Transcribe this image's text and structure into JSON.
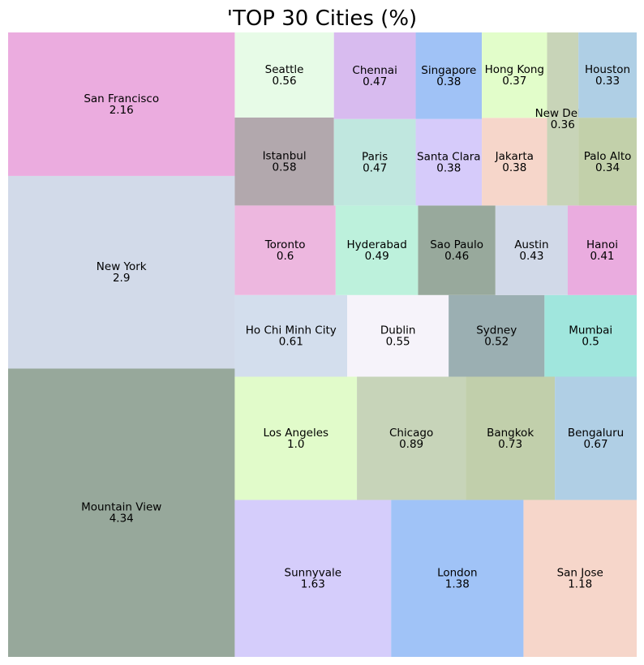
{
  "chart_data": {
    "type": "treemap",
    "title": "'TOP 30 Cities (%)",
    "items": [
      {
        "name": "Mountain View",
        "value": 4.34,
        "label": "4.34",
        "color": "#97a89b"
      },
      {
        "name": "New York",
        "value": 2.9,
        "label": "2.9",
        "color": "#d2dae9"
      },
      {
        "name": "San Francisco",
        "value": 2.16,
        "label": "2.16",
        "color": "#ebacdf"
      },
      {
        "name": "Sunnyvale",
        "value": 1.63,
        "label": "1.63",
        "color": "#d5cdfb"
      },
      {
        "name": "London",
        "value": 1.38,
        "label": "1.38",
        "color": "#a0c3f7"
      },
      {
        "name": "San Jose",
        "value": 1.18,
        "label": "1.18",
        "color": "#f6d6ca"
      },
      {
        "name": "Los Angeles",
        "value": 1.0,
        "label": "1.0",
        "color": "#e1fbca"
      },
      {
        "name": "Chicago",
        "value": 0.89,
        "label": "0.89",
        "color": "#c7d4b9"
      },
      {
        "name": "Bangkok",
        "value": 0.73,
        "label": "0.73",
        "color": "#c1cfab"
      },
      {
        "name": "Bengaluru",
        "value": 0.67,
        "label": "0.67",
        "color": "#b0cfe5"
      },
      {
        "name": "Ho Chi Minh City",
        "value": 0.61,
        "label": "0.61",
        "color": "#d3deed"
      },
      {
        "name": "Dublin",
        "value": 0.55,
        "label": "0.55",
        "color": "#f6f3fa"
      },
      {
        "name": "Sydney",
        "value": 0.52,
        "label": "0.52",
        "color": "#9bafb2"
      },
      {
        "name": "Mumbai",
        "value": 0.5,
        "label": "0.5",
        "color": "#a0e6dd"
      },
      {
        "name": "Toronto",
        "value": 0.6,
        "label": "0.6",
        "color": "#edb7df"
      },
      {
        "name": "Hyderabad",
        "value": 0.49,
        "label": "0.49",
        "color": "#bdf1dc"
      },
      {
        "name": "Sao Paulo",
        "value": 0.46,
        "label": "0.46",
        "color": "#98a99c"
      },
      {
        "name": "Austin",
        "value": 0.43,
        "label": "0.43",
        "color": "#d1d9e8"
      },
      {
        "name": "Hanoi",
        "value": 0.41,
        "label": "0.41",
        "color": "#eaacdf"
      },
      {
        "name": "Istanbul",
        "value": 0.58,
        "label": "0.58",
        "color": "#b2a8ad"
      },
      {
        "name": "Seattle",
        "value": 0.56,
        "label": "0.56",
        "color": "#e7fbe7"
      },
      {
        "name": "Paris",
        "value": 0.47,
        "label": "0.47",
        "color": "#c0e7df"
      },
      {
        "name": "Chennai",
        "value": 0.47,
        "label": "0.47",
        "color": "#d8bbef"
      },
      {
        "name": "Santa Clara",
        "value": 0.38,
        "label": "0.38",
        "color": "#d6cbfa"
      },
      {
        "name": "Singapore",
        "value": 0.38,
        "label": "0.38",
        "color": "#a0c2f6"
      },
      {
        "name": "Jakarta",
        "value": 0.38,
        "label": "0.38",
        "color": "#f6d6ca"
      },
      {
        "name": "Hong Kong",
        "value": 0.37,
        "label": "0.37",
        "color": "#e2fdca"
      },
      {
        "name": "New Delhi",
        "value": 0.36,
        "label": "0.36",
        "color": "#c8d4b8"
      },
      {
        "name": "Palo Alto",
        "value": 0.34,
        "label": "0.34",
        "color": "#c2d0aa"
      },
      {
        "name": "Houston",
        "value": 0.33,
        "label": "0.33",
        "color": "#afcfe5"
      }
    ]
  }
}
